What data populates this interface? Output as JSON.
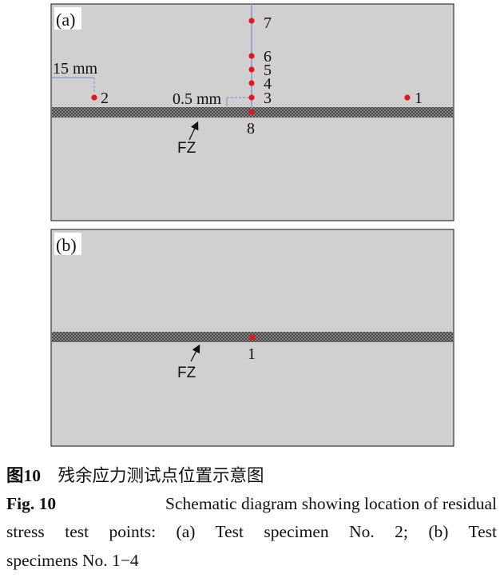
{
  "panel_a": {
    "label": "(a)",
    "dim_15": "15 mm",
    "dim_05": "0.5 mm",
    "zone_label": "FZ",
    "points": [
      "1",
      "2",
      "3",
      "4",
      "5",
      "6",
      "7",
      "8"
    ]
  },
  "panel_b": {
    "label": "(b)",
    "zone_label": "FZ",
    "points": [
      "1"
    ]
  },
  "colors": {
    "plate": "#d1cfd0",
    "point": "#e8141b",
    "guide": "#7f9ccc"
  },
  "caption": {
    "cn_fig": "图10",
    "cn_text": "残余应力测试点位置示意图",
    "en_fig": "Fig. 10",
    "en_line1": "Schematic diagram showing location of residual",
    "en_line2": "stress test points: (a) Test specimen No. 2; (b) Test",
    "en_line3": "specimens No. 1−4"
  }
}
